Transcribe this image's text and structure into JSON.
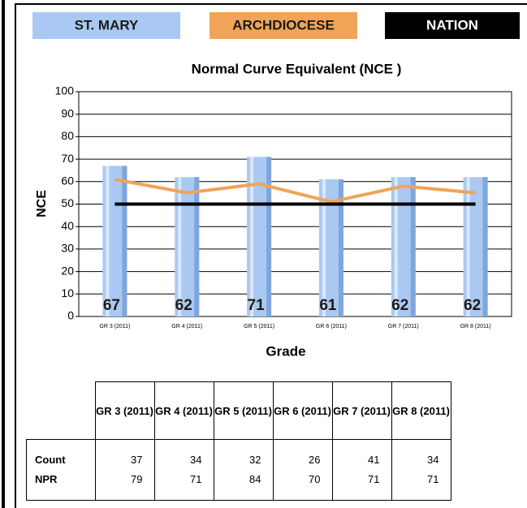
{
  "chart_data": {
    "type": "bar",
    "title": "Normal Curve Equivalent (NCE )",
    "y_label": "NCE",
    "x_label": "Grade",
    "categories": [
      "GR 3 (2011)",
      "GR 4 (2011)",
      "GR 5 (2011)",
      "GR 6 (2011)",
      "GR 7 (2011)",
      "GR 8 (2011)"
    ],
    "series": [
      {
        "name": "ST. MARY",
        "type": "bar",
        "color": "#a9c9f2",
        "values": [
          67,
          62,
          71,
          61,
          62,
          62
        ]
      },
      {
        "name": "ARCHDIOCESE",
        "type": "line",
        "color": "#f0a457",
        "values": [
          61,
          55,
          59,
          51,
          58,
          55
        ]
      },
      {
        "name": "NATION",
        "type": "line",
        "color": "#000000",
        "values": [
          50,
          50,
          50,
          50,
          50,
          50
        ]
      }
    ],
    "ylim": [
      0,
      100
    ],
    "yticks": [
      0,
      10,
      20,
      30,
      40,
      50,
      60,
      70,
      80,
      90,
      100
    ],
    "grid": true
  },
  "table": {
    "header": [
      "GR 3 (2011)",
      "GR 4 (2011)",
      "GR 5 (2011)",
      "GR 6 (2011)",
      "GR 7 (2011)",
      "GR 8 (2011)"
    ],
    "row_labels": [
      "Count",
      "NPR"
    ],
    "rows": [
      [
        37,
        34,
        32,
        26,
        41,
        34
      ],
      [
        79,
        71,
        84,
        70,
        71,
        71
      ]
    ]
  }
}
